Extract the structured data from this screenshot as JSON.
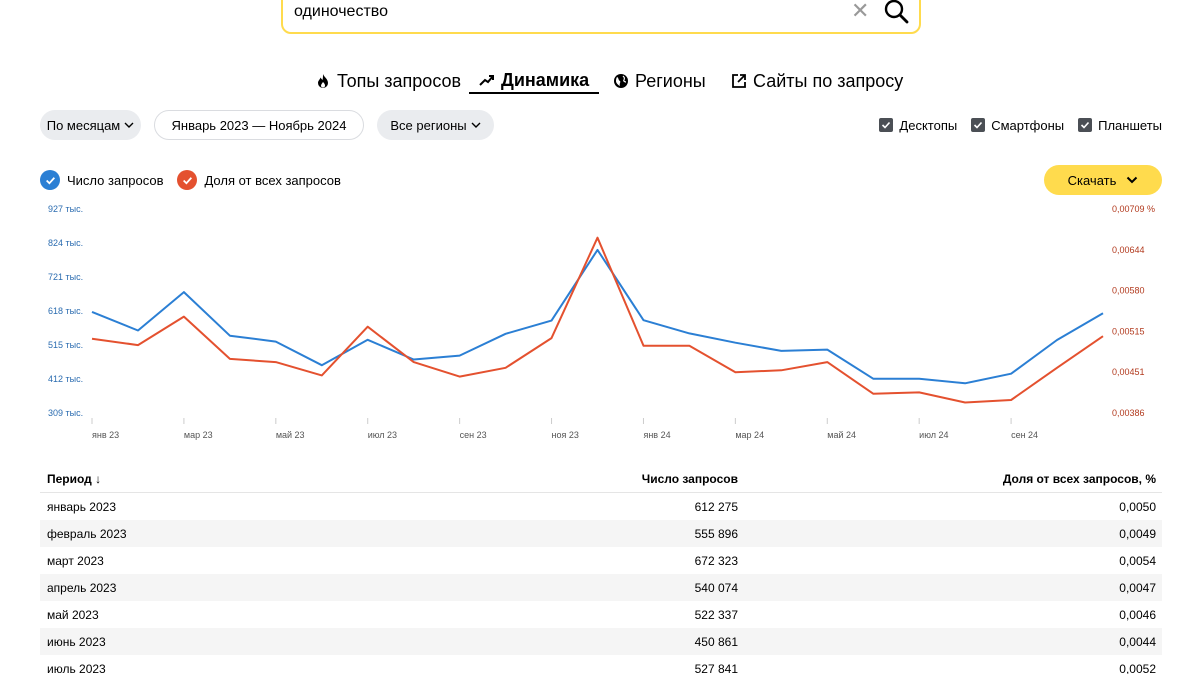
{
  "search": {
    "value": "одиночество"
  },
  "tabs": [
    {
      "label": "Топы запросов",
      "icon": "fire-icon"
    },
    {
      "label": "Динамика",
      "icon": "trend-icon",
      "active": true
    },
    {
      "label": "Регионы",
      "icon": "globe-icon"
    },
    {
      "label": "Сайты по запросу",
      "icon": "external-link-icon"
    }
  ],
  "controls": {
    "group_by": "По месяцам",
    "period": "Январь 2023 — Ноябрь 2024",
    "region": "Все регионы"
  },
  "devices": [
    {
      "label": "Десктопы",
      "checked": true
    },
    {
      "label": "Смартфоны",
      "checked": true
    },
    {
      "label": "Планшеты",
      "checked": true
    }
  ],
  "legend": [
    {
      "label": "Число запросов",
      "color": "#2b7fd4"
    },
    {
      "label": "Доля от всех запросов",
      "color": "#e4512f"
    }
  ],
  "download_label": "Скачать",
  "chart_data": {
    "type": "line",
    "x": [
      "янв 23",
      "фев 23",
      "мар 23",
      "апр 23",
      "май 23",
      "июн 23",
      "июл 23",
      "авг 23",
      "сен 23",
      "окт 23",
      "ноя 23",
      "дек 23",
      "янв 24",
      "фев 24",
      "мар 24",
      "апр 24",
      "май 24",
      "июн 24",
      "июл 24",
      "авг 24",
      "сен 24",
      "окт 24",
      "ноя 24"
    ],
    "x_tick_labels": [
      "янв 23",
      "мар 23",
      "май 23",
      "июл 23",
      "сен 23",
      "ноя 23",
      "янв 24",
      "мар 24",
      "май 24",
      "июл 24",
      "сен 24"
    ],
    "y_left_ticks": [
      "927 тыс.",
      "824 тыс.",
      "721 тыс.",
      "618 тыс.",
      "515 тыс.",
      "412 тыс.",
      "309 тыс."
    ],
    "y_right_ticks": [
      "0,00709 %",
      "0,00644",
      "0,00580",
      "0,00515",
      "0,00451",
      "0,00386"
    ],
    "y_left_range": [
      309000,
      927000
    ],
    "y_right_range": [
      0.00386,
      0.00709
    ],
    "series": [
      {
        "name": "Число запросов",
        "axis": "left",
        "color": "#2b7fd4",
        "values": [
          612275,
          555896,
          672323,
          540074,
          522337,
          450861,
          527841,
          468000,
          480000,
          546000,
          586000,
          800000,
          587000,
          547000,
          519000,
          494000,
          498000,
          410000,
          410000,
          396000,
          425000,
          527000,
          608000
        ]
      },
      {
        "name": "Доля от всех запросов",
        "axis": "right",
        "color": "#e4512f",
        "values": [
          0.00502,
          0.00492,
          0.00537,
          0.0047,
          0.00465,
          0.00444,
          0.00521,
          0.00465,
          0.00442,
          0.00456,
          0.00503,
          0.00662,
          0.00491,
          0.00491,
          0.00449,
          0.00452,
          0.00465,
          0.00415,
          0.00417,
          0.00401,
          0.00405,
          0.00456,
          0.00506
        ]
      }
    ]
  },
  "table": {
    "headers": {
      "period": "Период",
      "count": "Число запросов",
      "share": "Доля от всех запросов, %"
    },
    "rows": [
      {
        "period": "январь 2023",
        "count": "612 275",
        "share": "0,0050"
      },
      {
        "period": "февраль 2023",
        "count": "555 896",
        "share": "0,0049"
      },
      {
        "period": "март 2023",
        "count": "672 323",
        "share": "0,0054"
      },
      {
        "period": "апрель 2023",
        "count": "540 074",
        "share": "0,0047"
      },
      {
        "period": "май 2023",
        "count": "522 337",
        "share": "0,0046"
      },
      {
        "period": "июнь 2023",
        "count": "450 861",
        "share": "0,0044"
      },
      {
        "period": "июль 2023",
        "count": "527 841",
        "share": "0,0052"
      }
    ]
  }
}
